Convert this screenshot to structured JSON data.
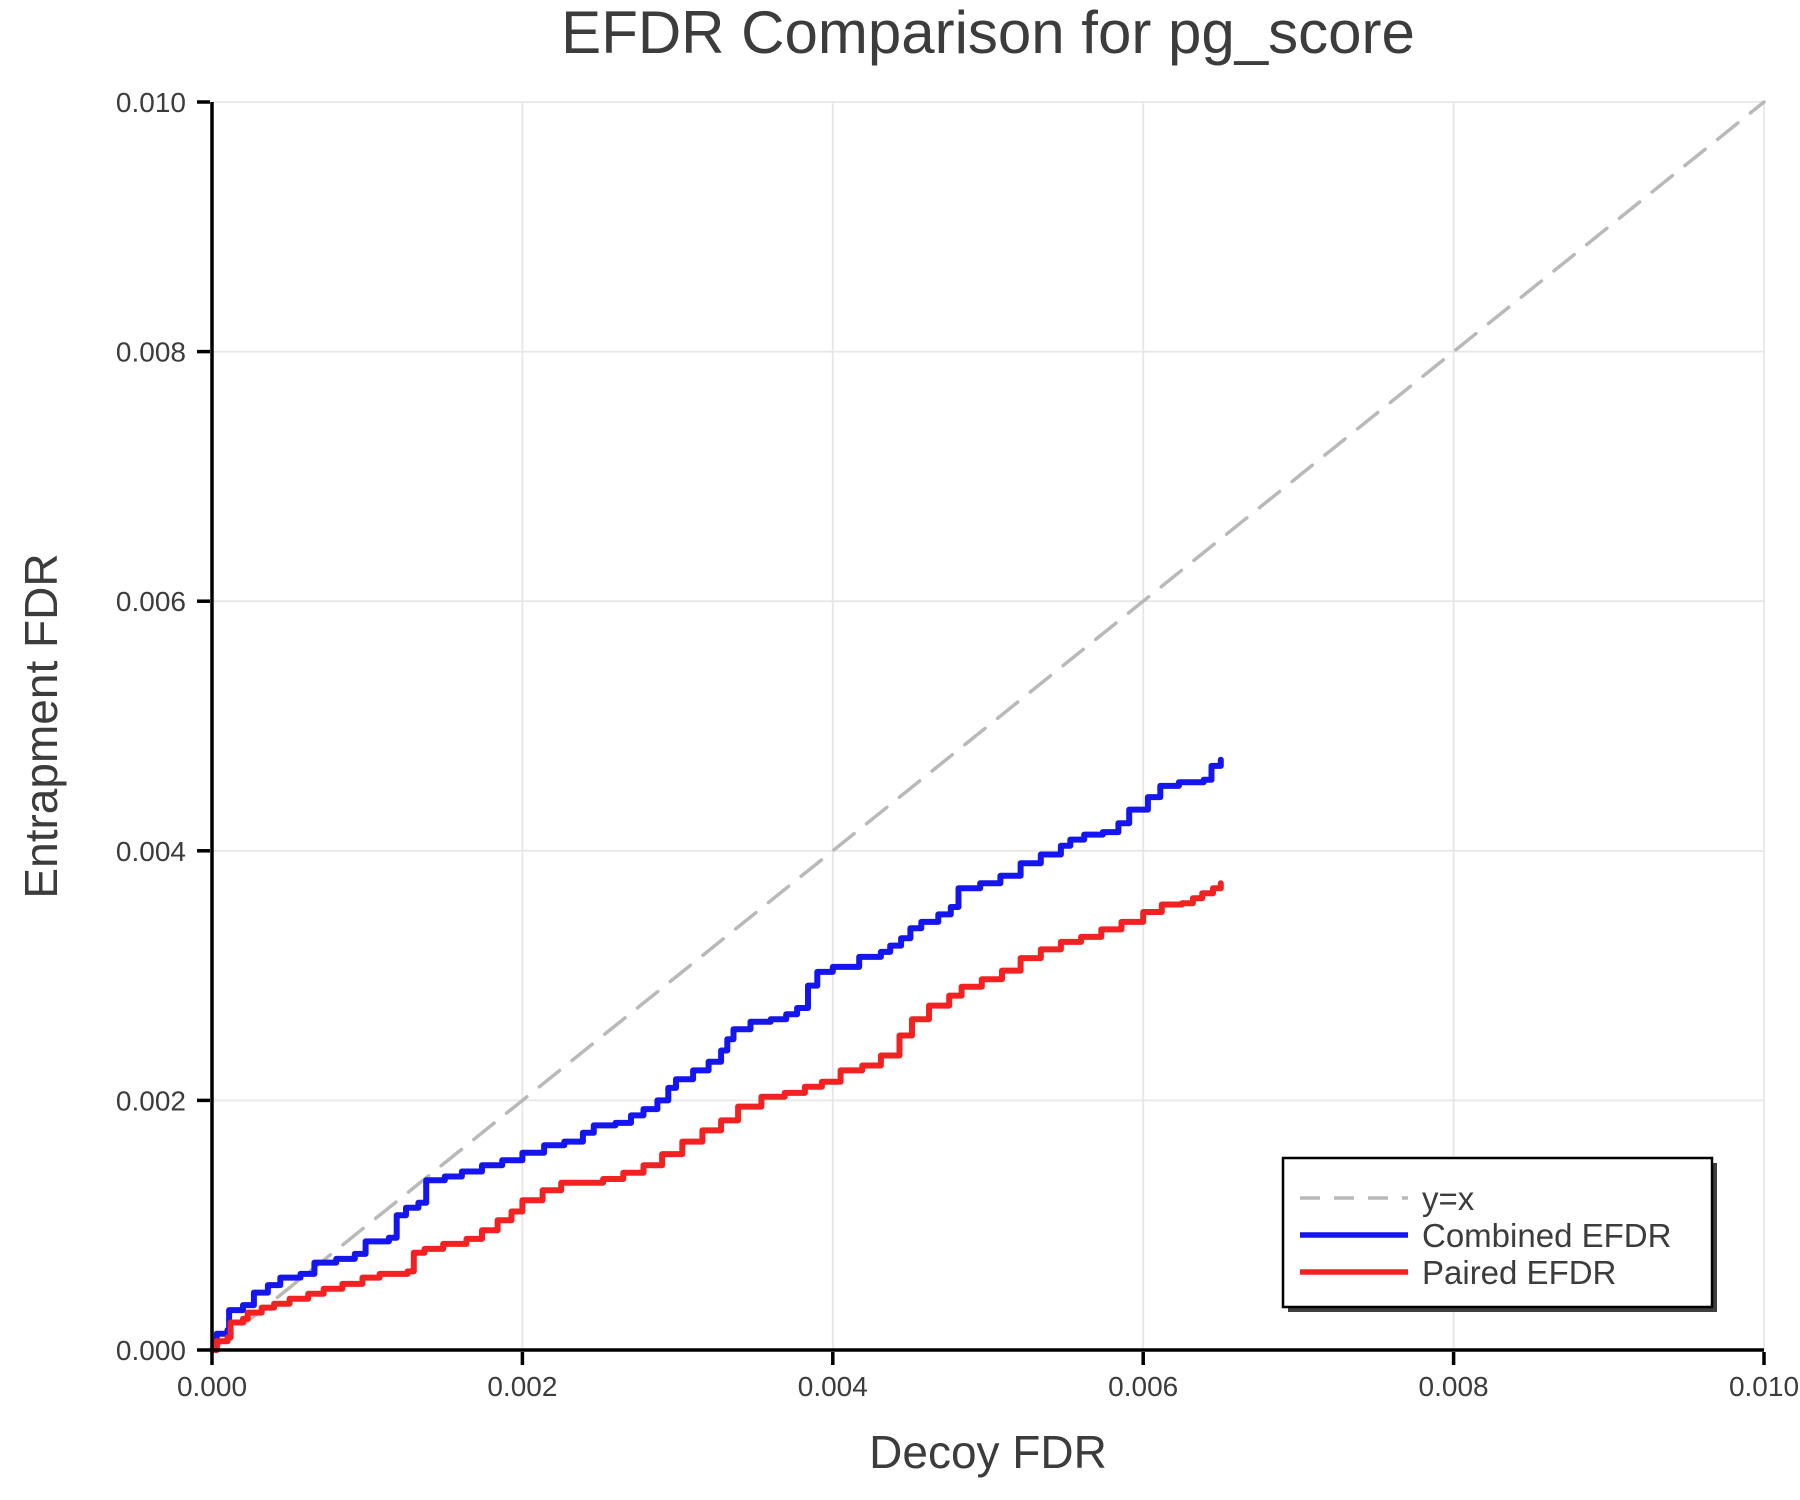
{
  "title": "EFDR Comparison for pg_score",
  "axes": {
    "xlabel": "Decoy FDR",
    "ylabel": "Entrapment FDR"
  },
  "legend": {
    "position": "lower right",
    "entries": [
      {
        "label": "y=x",
        "color": "#b9b9b9",
        "dashed": true
      },
      {
        "label": "Combined EFDR",
        "color": "#1515f0",
        "dashed": false
      },
      {
        "label": "Paired EFDR",
        "color": "#f32222",
        "dashed": false
      }
    ]
  },
  "colors": {
    "grid": "#e7e7e7",
    "spine": "#000000",
    "text": "#3c3c3c",
    "identity": "#b9b9b9",
    "combined": "#1515f0",
    "paired": "#f32222",
    "legend_border": "#000000",
    "legend_shadow": "#3f3f3f",
    "background": "#ffffff"
  },
  "chart_data": {
    "type": "line",
    "title": "EFDR Comparison for pg_score",
    "xlabel": "Decoy FDR",
    "ylabel": "Entrapment FDR",
    "xlim": [
      0.0,
      0.01
    ],
    "ylim": [
      0.0,
      0.01
    ],
    "grid": true,
    "xticks": {
      "values": [
        0.0,
        0.002,
        0.004,
        0.006,
        0.008,
        0.01
      ],
      "labels": [
        "0.000",
        "0.002",
        "0.004",
        "0.006",
        "0.008",
        "0.010"
      ]
    },
    "yticks": {
      "values": [
        0.0,
        0.002,
        0.004,
        0.006,
        0.008,
        0.01
      ],
      "labels": [
        "0.000",
        "0.002",
        "0.004",
        "0.006",
        "0.008",
        "0.010"
      ]
    },
    "series": [
      {
        "name": "y=x",
        "color": "#b9b9b9",
        "interp": "linear",
        "dashed": true,
        "width": 3.5,
        "points": [
          [
            0.0,
            0.0
          ],
          [
            0.01,
            0.01
          ]
        ]
      },
      {
        "name": "Combined EFDR",
        "color": "#1515f0",
        "interp": "step",
        "dashed": false,
        "width": 6,
        "points": [
          [
            0.0,
            0.0
          ],
          [
            3e-05,
            0.00013
          ],
          [
            0.0001,
            0.00016
          ],
          [
            0.00011,
            0.00032
          ],
          [
            0.0002,
            0.00036
          ],
          [
            0.00027,
            0.00046
          ],
          [
            0.00036,
            0.00052
          ],
          [
            0.00044,
            0.00058
          ],
          [
            0.00057,
            0.00061
          ],
          [
            0.00066,
            0.0007
          ],
          [
            0.0008,
            0.00073
          ],
          [
            0.00092,
            0.00077
          ],
          [
            0.00099,
            0.00087
          ],
          [
            0.00114,
            0.0009
          ],
          [
            0.00119,
            0.00108
          ],
          [
            0.00125,
            0.00114
          ],
          [
            0.00133,
            0.00118
          ],
          [
            0.00138,
            0.00136
          ],
          [
            0.0015,
            0.00139
          ],
          [
            0.00161,
            0.00143
          ],
          [
            0.00174,
            0.00148
          ],
          [
            0.00187,
            0.00152
          ],
          [
            0.002,
            0.00158
          ],
          [
            0.00214,
            0.00164
          ],
          [
            0.00227,
            0.00167
          ],
          [
            0.00239,
            0.00174
          ],
          [
            0.00246,
            0.0018
          ],
          [
            0.0026,
            0.00182
          ],
          [
            0.0027,
            0.00188
          ],
          [
            0.00278,
            0.00193
          ],
          [
            0.00287,
            0.002
          ],
          [
            0.00294,
            0.0021
          ],
          [
            0.00299,
            0.00217
          ],
          [
            0.0031,
            0.00224
          ],
          [
            0.0032,
            0.00231
          ],
          [
            0.00328,
            0.0024
          ],
          [
            0.00332,
            0.00249
          ],
          [
            0.00336,
            0.00257
          ],
          [
            0.00347,
            0.00263
          ],
          [
            0.0036,
            0.00265
          ],
          [
            0.0037,
            0.00269
          ],
          [
            0.00377,
            0.00274
          ],
          [
            0.00384,
            0.00292
          ],
          [
            0.0039,
            0.00303
          ],
          [
            0.004,
            0.00307
          ],
          [
            0.00417,
            0.00315
          ],
          [
            0.00431,
            0.00319
          ],
          [
            0.00437,
            0.00324
          ],
          [
            0.00444,
            0.0033
          ],
          [
            0.0045,
            0.00338
          ],
          [
            0.00457,
            0.00343
          ],
          [
            0.00468,
            0.00349
          ],
          [
            0.00476,
            0.00355
          ],
          [
            0.00481,
            0.0037
          ],
          [
            0.00495,
            0.00374
          ],
          [
            0.00508,
            0.0038
          ],
          [
            0.00521,
            0.0039
          ],
          [
            0.00534,
            0.00397
          ],
          [
            0.00547,
            0.00404
          ],
          [
            0.00553,
            0.00409
          ],
          [
            0.00562,
            0.00413
          ],
          [
            0.00574,
            0.00415
          ],
          [
            0.00584,
            0.00422
          ],
          [
            0.00591,
            0.00433
          ],
          [
            0.00603,
            0.00443
          ],
          [
            0.00611,
            0.00452
          ],
          [
            0.00623,
            0.00455
          ],
          [
            0.00639,
            0.00457
          ],
          [
            0.00644,
            0.00468
          ],
          [
            0.0065,
            0.00473
          ]
        ]
      },
      {
        "name": "Paired EFDR",
        "color": "#f32222",
        "interp": "step",
        "dashed": false,
        "width": 6,
        "points": [
          [
            0.0,
            0.0
          ],
          [
            3e-05,
            7e-05
          ],
          [
            0.0001,
            0.0001
          ],
          [
            0.00012,
            0.00022
          ],
          [
            0.0002,
            0.00025
          ],
          [
            0.00023,
            0.0003
          ],
          [
            0.00032,
            0.00034
          ],
          [
            0.0004,
            0.00037
          ],
          [
            0.0005,
            0.00041
          ],
          [
            0.00062,
            0.00045
          ],
          [
            0.00072,
            0.00049
          ],
          [
            0.00084,
            0.00053
          ],
          [
            0.00097,
            0.00058
          ],
          [
            0.00108,
            0.00061
          ],
          [
            0.00126,
            0.00063
          ],
          [
            0.0013,
            0.00078
          ],
          [
            0.00137,
            0.00081
          ],
          [
            0.00149,
            0.00085
          ],
          [
            0.00164,
            0.00089
          ],
          [
            0.00174,
            0.00096
          ],
          [
            0.00184,
            0.00104
          ],
          [
            0.00193,
            0.00111
          ],
          [
            0.002,
            0.0012
          ],
          [
            0.00213,
            0.00128
          ],
          [
            0.00225,
            0.00134
          ],
          [
            0.00252,
            0.00137
          ],
          [
            0.00265,
            0.00142
          ],
          [
            0.00278,
            0.00148
          ],
          [
            0.0029,
            0.00157
          ],
          [
            0.00303,
            0.00167
          ],
          [
            0.00316,
            0.00176
          ],
          [
            0.00328,
            0.00184
          ],
          [
            0.00339,
            0.00195
          ],
          [
            0.00354,
            0.00203
          ],
          [
            0.00369,
            0.00206
          ],
          [
            0.00382,
            0.00211
          ],
          [
            0.00393,
            0.00215
          ],
          [
            0.00405,
            0.00224
          ],
          [
            0.00419,
            0.00228
          ],
          [
            0.00431,
            0.00236
          ],
          [
            0.00443,
            0.00252
          ],
          [
            0.00451,
            0.00265
          ],
          [
            0.00462,
            0.00276
          ],
          [
            0.00475,
            0.00284
          ],
          [
            0.00483,
            0.00291
          ],
          [
            0.00496,
            0.00297
          ],
          [
            0.00509,
            0.00304
          ],
          [
            0.00521,
            0.00314
          ],
          [
            0.00534,
            0.00321
          ],
          [
            0.00547,
            0.00327
          ],
          [
            0.0056,
            0.00331
          ],
          [
            0.00573,
            0.00337
          ],
          [
            0.00586,
            0.00343
          ],
          [
            0.006,
            0.00351
          ],
          [
            0.00612,
            0.00357
          ],
          [
            0.00625,
            0.00358
          ],
          [
            0.00632,
            0.00362
          ],
          [
            0.00638,
            0.00366
          ],
          [
            0.00645,
            0.0037
          ],
          [
            0.0065,
            0.00374
          ]
        ]
      }
    ]
  }
}
